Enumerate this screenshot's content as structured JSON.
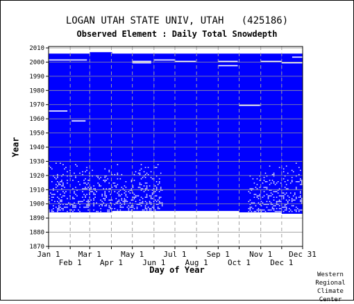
{
  "chart_data": {
    "type": "heatmap",
    "title": "LOGAN UTAH STATE UNIV, UTAH   (425186)",
    "subtitle": "Observed Element : Daily Total Snowdepth",
    "xlabel": "Day of Year",
    "ylabel": "Year",
    "x_ticks_top_row": [
      {
        "label": "Jan 1",
        "day": 1
      },
      {
        "label": "Mar 1",
        "day": 60
      },
      {
        "label": "May 1",
        "day": 121
      },
      {
        "label": "Jul 1",
        "day": 182
      },
      {
        "label": "Sep 1",
        "day": 244
      },
      {
        "label": "Nov 1",
        "day": 305
      },
      {
        "label": "Dec 31",
        "day": 365
      }
    ],
    "x_ticks_bottom_row": [
      {
        "label": "Feb 1",
        "day": 32
      },
      {
        "label": "Apr 1",
        "day": 91
      },
      {
        "label": "Jun 1",
        "day": 152
      },
      {
        "label": "Aug 1",
        "day": 213
      },
      {
        "label": "Oct 1",
        "day": 274
      },
      {
        "label": "Dec 1",
        "day": 335
      }
    ],
    "y_ticks": [
      1870,
      1880,
      1890,
      1900,
      1910,
      1920,
      1930,
      1940,
      1950,
      1960,
      1970,
      1980,
      1990,
      2000,
      2010
    ],
    "ylim": [
      1870,
      2011
    ],
    "xlim": [
      1,
      365
    ],
    "data_color": "#0000ff",
    "record_periods": [
      {
        "day_start": 1,
        "day_end": 60,
        "year_start": 1894,
        "year_end": 2005
      },
      {
        "day_start": 60,
        "day_end": 92,
        "year_start": 1894,
        "year_end": 2006
      },
      {
        "day_start": 92,
        "day_end": 152,
        "year_start": 1895,
        "year_end": 2005
      },
      {
        "day_start": 152,
        "day_end": 274,
        "year_start": 1895,
        "year_end": 2005
      },
      {
        "day_start": 274,
        "day_end": 335,
        "year_start": 1894,
        "year_end": 2005
      },
      {
        "day_start": 335,
        "day_end": 365,
        "year_start": 1893,
        "year_end": 2005
      }
    ],
    "missing_segments": [
      {
        "year": 2001,
        "day_start": 1,
        "day_end": 56
      },
      {
        "year": 1965,
        "day_start": 1,
        "day_end": 28
      },
      {
        "year": 1958,
        "day_start": 34,
        "day_end": 54
      },
      {
        "year": 2000,
        "day_start": 121,
        "day_end": 148
      },
      {
        "year": 1999,
        "day_start": 121,
        "day_end": 148
      },
      {
        "year": 2001,
        "day_start": 152,
        "day_end": 182
      },
      {
        "year": 2000,
        "day_start": 182,
        "day_end": 212
      },
      {
        "year": 2000,
        "day_start": 244,
        "day_end": 272
      },
      {
        "year": 1997,
        "day_start": 244,
        "day_end": 272
      },
      {
        "year": 1969,
        "day_start": 274,
        "day_end": 304
      },
      {
        "year": 2000,
        "day_start": 305,
        "day_end": 335
      },
      {
        "year": 1999,
        "day_start": 335,
        "day_end": 365
      },
      {
        "year": 2003,
        "day_start": 350,
        "day_end": 365
      }
    ],
    "missing_period": {
      "label": "early record (1894-1930)",
      "year_start": 1894,
      "year_end": 1930,
      "density": 0.33
    }
  },
  "credit_lines": [
    "Western",
    "Regional",
    "Climate",
    "Center"
  ]
}
